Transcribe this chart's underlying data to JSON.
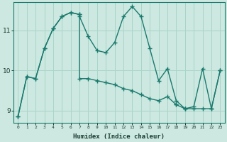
{
  "xlabel": "Humidex (Indice chaleur)",
  "background_color": "#cce8e0",
  "line_color": "#1a7a6e",
  "xlim": [
    -0.5,
    23.5
  ],
  "ylim": [
    8.7,
    11.7
  ],
  "yticks": [
    9,
    10,
    11
  ],
  "xticks": [
    0,
    1,
    2,
    3,
    4,
    5,
    6,
    7,
    8,
    9,
    10,
    11,
    12,
    13,
    14,
    15,
    16,
    17,
    18,
    19,
    20,
    21,
    22,
    23
  ],
  "series1_x": [
    0,
    1,
    2,
    3,
    4,
    5,
    6,
    7,
    7,
    8,
    9,
    10,
    11,
    12,
    13,
    14,
    15,
    16,
    17,
    18,
    19,
    20,
    21,
    22,
    23
  ],
  "series1_y": [
    8.85,
    9.85,
    9.8,
    10.55,
    11.05,
    11.35,
    11.45,
    11.4,
    11.35,
    10.85,
    10.5,
    10.45,
    10.7,
    11.35,
    11.6,
    11.35,
    10.55,
    9.75,
    10.05,
    9.25,
    9.05,
    9.1,
    10.05,
    9.05,
    10.0
  ],
  "series2_x": [
    0,
    1,
    2,
    3,
    4,
    5,
    6,
    7,
    7,
    8,
    9,
    10,
    11,
    12,
    13,
    14,
    15,
    16,
    17,
    18,
    18,
    19,
    19,
    20,
    21,
    22,
    23
  ],
  "series2_y": [
    8.85,
    9.85,
    9.8,
    10.55,
    11.05,
    11.35,
    11.45,
    11.4,
    9.8,
    9.8,
    9.75,
    9.7,
    9.65,
    9.55,
    9.5,
    9.4,
    9.3,
    9.25,
    9.35,
    9.15,
    9.15,
    9.05,
    9.05,
    9.05,
    9.05,
    9.05,
    10.0
  ],
  "grid_color": "#a8d5c8",
  "marker": "+",
  "markersize": 4,
  "linewidth": 1.0
}
